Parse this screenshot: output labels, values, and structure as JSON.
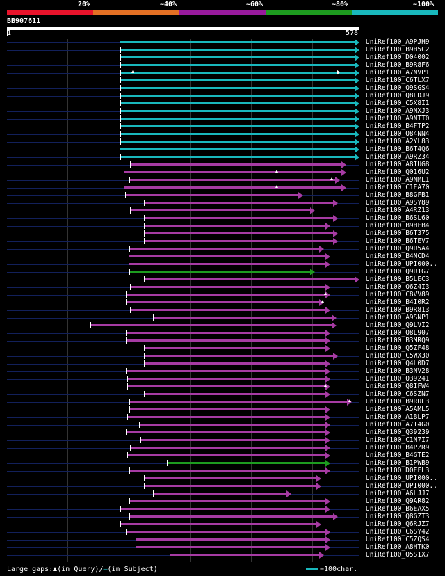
{
  "legend": {
    "labels": [
      "20%",
      "~40%",
      "~60%",
      "~80%",
      "~100%"
    ],
    "colors": [
      "#e8132b",
      "#e37024",
      "#981a9c",
      "#1d9b1f",
      "#19b8bd"
    ]
  },
  "query": {
    "id": "BB907611",
    "start": "1",
    "end": "578",
    "length": 578
  },
  "colors": {
    "cyan": "#19b8bd",
    "magenta": "#a63ba3",
    "green": "#1d9b1f"
  },
  "hits": [
    {
      "name": "UniRef100_A9PJH9",
      "c": "cyan",
      "s": 185,
      "e": 578
    },
    {
      "name": "UniRef100_B9H5C2",
      "c": "cyan",
      "s": 187,
      "e": 578
    },
    {
      "name": "UniRef100_D04002",
      "c": "cyan",
      "s": 187,
      "e": 578
    },
    {
      "name": "UniRef100_B9R8F6",
      "c": "cyan",
      "s": 187,
      "e": 578
    },
    {
      "name": "UniRef100_A7NVP1",
      "c": "cyan",
      "s": 187,
      "e": 578,
      "inner": 540,
      "gq": 205
    },
    {
      "name": "UniRef100_C6TLX7",
      "c": "cyan",
      "s": 187,
      "e": 578
    },
    {
      "name": "UniRef100_Q9SGS4",
      "c": "cyan",
      "s": 187,
      "e": 578
    },
    {
      "name": "UniRef100_Q8LDJ9",
      "c": "cyan",
      "s": 187,
      "e": 578
    },
    {
      "name": "UniRef100_C5X8I1",
      "c": "cyan",
      "s": 187,
      "e": 578
    },
    {
      "name": "UniRef100_A9NXJ3",
      "c": "cyan",
      "s": 187,
      "e": 578
    },
    {
      "name": "UniRef100_A9NTT0",
      "c": "cyan",
      "s": 187,
      "e": 578
    },
    {
      "name": "UniRef100_B4FTP2",
      "c": "cyan",
      "s": 187,
      "e": 578
    },
    {
      "name": "UniRef100_Q84NN4",
      "c": "cyan",
      "s": 187,
      "e": 578
    },
    {
      "name": "UniRef100_A2YL83",
      "c": "cyan",
      "s": 187,
      "e": 578
    },
    {
      "name": "UniRef100_B6T4Q6",
      "c": "cyan",
      "s": 185,
      "e": 578
    },
    {
      "name": "UniRef100_A9RZ34",
      "c": "cyan",
      "s": 187,
      "e": 578
    },
    {
      "name": "UniRef100_A8IUG8",
      "c": "magenta",
      "s": 202,
      "e": 556
    },
    {
      "name": "UniRef100_Q016U2",
      "c": "magenta",
      "s": 192,
      "e": 556,
      "gq": 440
    },
    {
      "name": "UniRef100_A9NML1",
      "c": "magenta",
      "s": 201,
      "e": 546,
      "gq": 530
    },
    {
      "name": "UniRef100_C1EA70",
      "c": "magenta",
      "s": 192,
      "e": 556,
      "gq": 440
    },
    {
      "name": "UniRef100_B8GFB1",
      "c": "magenta",
      "s": 194,
      "e": 486
    },
    {
      "name": "UniRef100_A9SY89",
      "c": "magenta",
      "s": 225,
      "e": 543
    },
    {
      "name": "UniRef100_A4RZ13",
      "c": "magenta",
      "s": 203,
      "e": 505
    },
    {
      "name": "UniRef100_B6SL60",
      "c": "magenta",
      "s": 225,
      "e": 543
    },
    {
      "name": "UniRef100_B9HFB4",
      "c": "magenta",
      "s": 225,
      "e": 530
    },
    {
      "name": "UniRef100_B6T375",
      "c": "magenta",
      "s": 225,
      "e": 543
    },
    {
      "name": "UniRef100_B6TEV7",
      "c": "magenta",
      "s": 225,
      "e": 543
    },
    {
      "name": "UniRef100_Q9U5A4",
      "c": "magenta",
      "s": 201,
      "e": 520
    },
    {
      "name": "UniRef100_B4NCD4",
      "c": "magenta",
      "s": 200,
      "e": 530
    },
    {
      "name": "UniRef100_UPI000..",
      "c": "magenta",
      "s": 200,
      "e": 530
    },
    {
      "name": "UniRef100_Q9U1G7",
      "c": "green",
      "s": 201,
      "e": 505
    },
    {
      "name": "UniRef100_B5LEC3",
      "c": "magenta",
      "s": 225,
      "e": 578
    },
    {
      "name": "UniRef100_Q6Z4I3",
      "c": "magenta",
      "s": 202,
      "e": 530
    },
    {
      "name": "UniRef100_C8VV89",
      "c": "magenta",
      "s": 196,
      "e": 530,
      "gq": 520
    },
    {
      "name": "UniRef100_B4I0R2",
      "c": "magenta",
      "s": 196,
      "e": 520,
      "gq": 515
    },
    {
      "name": "UniRef100_B9R813",
      "c": "magenta",
      "s": 203,
      "e": 530
    },
    {
      "name": "UniRef100_A9SNP1",
      "c": "magenta",
      "s": 240,
      "e": 540
    },
    {
      "name": "UniRef100_Q9LVI2",
      "c": "magenta",
      "s": 137,
      "e": 540
    },
    {
      "name": "UniRef100_Q8L907",
      "c": "magenta",
      "s": 196,
      "e": 530
    },
    {
      "name": "UniRef100_B3MRQ9",
      "c": "magenta",
      "s": 196,
      "e": 530
    },
    {
      "name": "UniRef100_Q5ZF48",
      "c": "magenta",
      "s": 225,
      "e": 530
    },
    {
      "name": "UniRef100_C5WX30",
      "c": "magenta",
      "s": 225,
      "e": 543
    },
    {
      "name": "UniRef100_Q4L0D7",
      "c": "magenta",
      "s": 225,
      "e": 530
    },
    {
      "name": "UniRef100_B3NV28",
      "c": "magenta",
      "s": 196,
      "e": 530
    },
    {
      "name": "UniRef100_Q39241",
      "c": "magenta",
      "s": 198,
      "e": 530
    },
    {
      "name": "UniRef100_Q8IFW4",
      "c": "magenta",
      "s": 198,
      "e": 530,
      "gq": 520
    },
    {
      "name": "UniRef100_C6SZN7",
      "c": "magenta",
      "s": 225,
      "e": 530
    },
    {
      "name": "UniRef100_B9RUL3",
      "c": "magenta",
      "s": 201,
      "e": 566,
      "gq": 560
    },
    {
      "name": "UniRef100_A5AML5",
      "c": "magenta",
      "s": 201,
      "e": 530
    },
    {
      "name": "UniRef100_A1BLP7",
      "c": "magenta",
      "s": 198,
      "e": 530
    },
    {
      "name": "UniRef100_A7T4G0",
      "c": "magenta",
      "s": 217,
      "e": 530
    },
    {
      "name": "UniRef100_Q39239",
      "c": "magenta",
      "s": 196,
      "e": 530
    },
    {
      "name": "UniRef100_C1N7I7",
      "c": "magenta",
      "s": 219,
      "e": 530
    },
    {
      "name": "UniRef100_B4PZR9",
      "c": "magenta",
      "s": 202,
      "e": 530
    },
    {
      "name": "UniRef100_B4GTE2",
      "c": "magenta",
      "s": 198,
      "e": 530
    },
    {
      "name": "UniRef100_B1PWB9",
      "c": "green",
      "s": 263,
      "e": 530
    },
    {
      "name": "UniRef100_D0EFL3",
      "c": "magenta",
      "s": 201,
      "e": 530
    },
    {
      "name": "UniRef100_UPI000..",
      "c": "magenta",
      "s": 225,
      "e": 515
    },
    {
      "name": "UniRef100_UPI000..",
      "c": "magenta",
      "s": 225,
      "e": 515
    },
    {
      "name": "UniRef100_A6LJJ7",
      "c": "magenta",
      "s": 240,
      "e": 466
    },
    {
      "name": "UniRef100_Q9AR82",
      "c": "magenta",
      "s": 201,
      "e": 530
    },
    {
      "name": "UniRef100_B6EAX5",
      "c": "magenta",
      "s": 186,
      "e": 530
    },
    {
      "name": "UniRef100_Q8GZT3",
      "c": "magenta",
      "s": 201,
      "e": 543
    },
    {
      "name": "UniRef100_Q6RJZ7",
      "c": "magenta",
      "s": 186,
      "e": 515
    },
    {
      "name": "UniRef100_C6SY42",
      "c": "magenta",
      "s": 196,
      "e": 530
    },
    {
      "name": "UniRef100_C5ZQS4",
      "c": "magenta",
      "s": 212,
      "e": 530
    },
    {
      "name": "UniRef100_A8HTK0",
      "c": "magenta",
      "s": 212,
      "e": 530
    },
    {
      "name": "UniRef100_Q5S1X7",
      "c": "magenta",
      "s": 267,
      "e": 520
    }
  ],
  "footer": {
    "prefix": "Large gaps:",
    "query_text": "(in Query)/",
    "subject_text": "(in Subject)",
    "scale_text": "=100char."
  }
}
